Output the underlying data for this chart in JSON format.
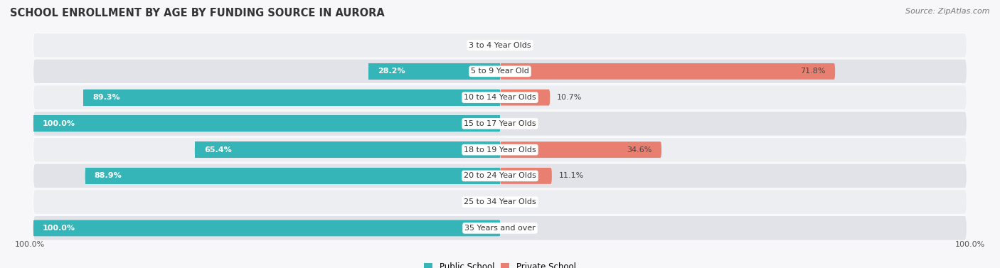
{
  "title": "SCHOOL ENROLLMENT BY AGE BY FUNDING SOURCE IN AURORA",
  "source": "Source: ZipAtlas.com",
  "categories": [
    "3 to 4 Year Olds",
    "5 to 9 Year Old",
    "10 to 14 Year Olds",
    "15 to 17 Year Olds",
    "18 to 19 Year Olds",
    "20 to 24 Year Olds",
    "25 to 34 Year Olds",
    "35 Years and over"
  ],
  "public_values": [
    0.0,
    28.2,
    89.3,
    100.0,
    65.4,
    88.9,
    0.0,
    100.0
  ],
  "private_values": [
    0.0,
    71.8,
    10.7,
    0.0,
    34.6,
    11.1,
    0.0,
    0.0
  ],
  "public_color": "#36b5b8",
  "private_color": "#e87f70",
  "public_color_light": "#9fd8db",
  "private_color_light": "#f0b8b0",
  "row_bg_light": "#edeef2",
  "row_bg_dark": "#e2e3e8",
  "bg_color": "#f7f7f9",
  "label_fontsize": 8.0,
  "title_fontsize": 10.5,
  "legend_fontsize": 8.5,
  "source_fontsize": 8.0
}
